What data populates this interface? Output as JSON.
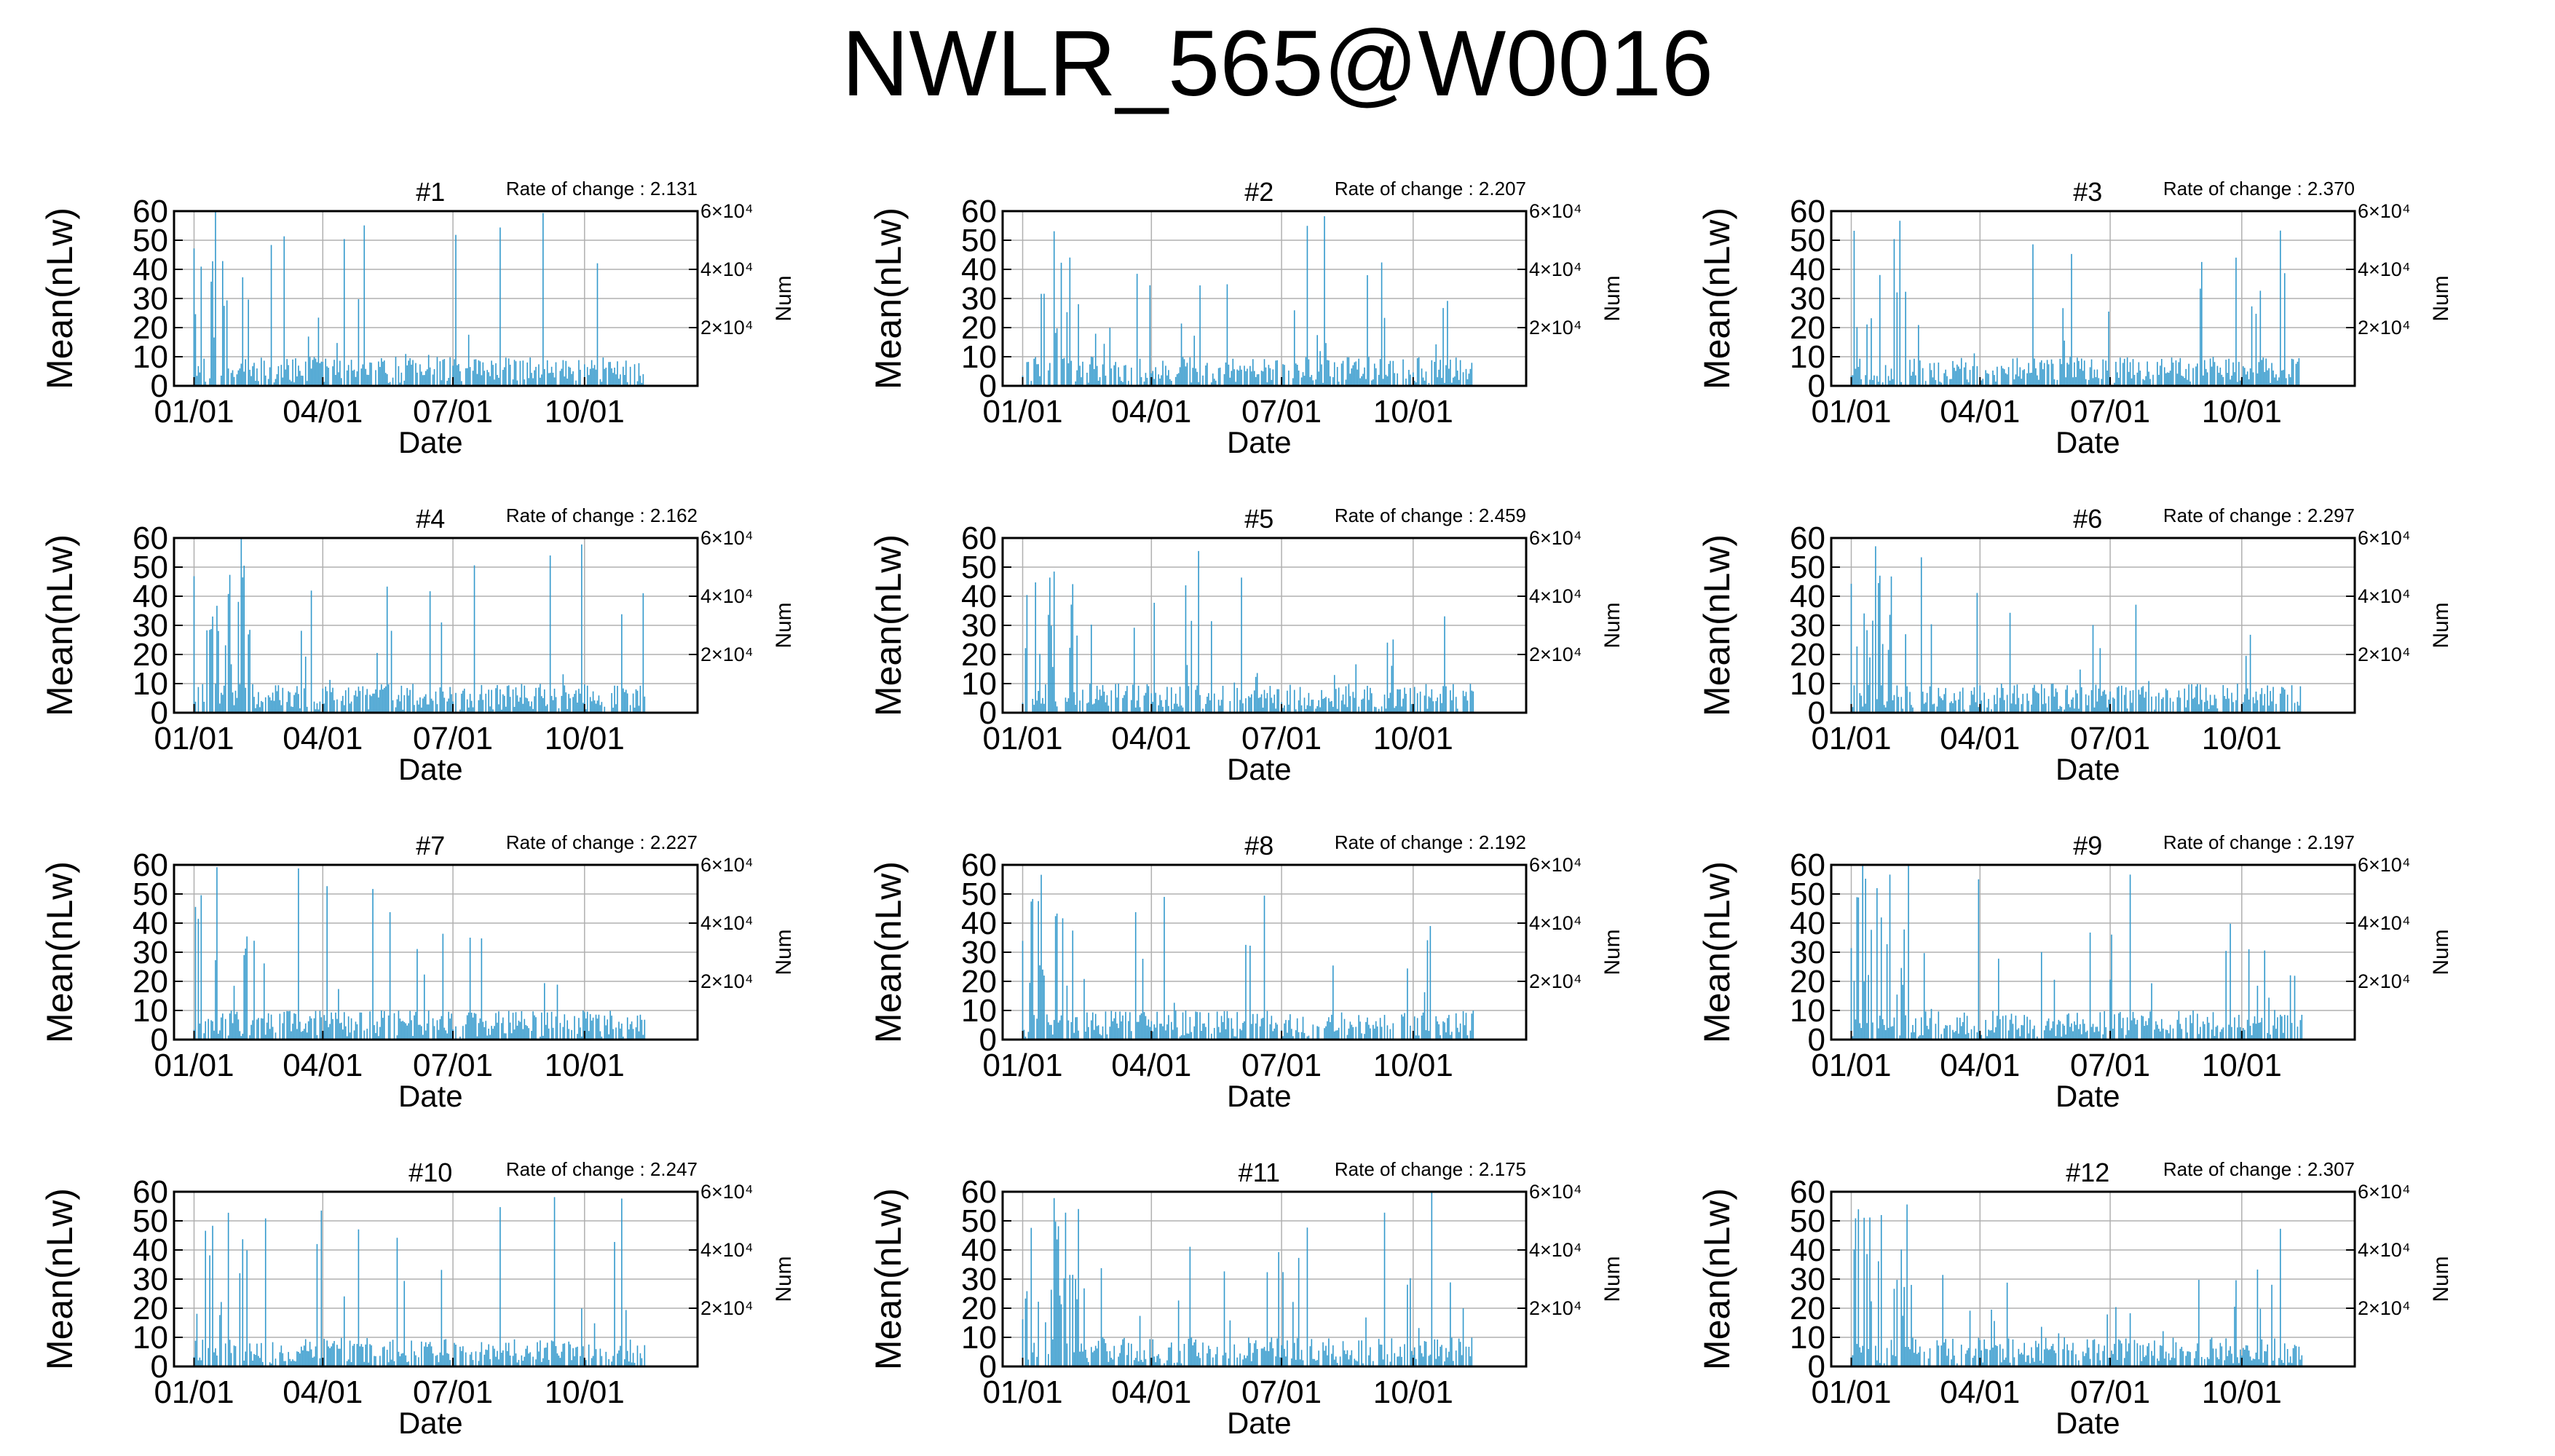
{
  "figure": {
    "title": "NWLR_565@W0016",
    "ylabel": "Mean(nLw)",
    "xlabel": "Date",
    "y2label": "Num",
    "rate_label": "Rate of change : ",
    "colors": {
      "bars": "#3399cc",
      "axes": "#000000",
      "grid": "#b0b0b0"
    }
  },
  "chart_data": [
    {
      "title": "#1",
      "rate": "2.131",
      "type": "bar",
      "x_ticks": [
        "01/01",
        "04/01",
        "07/01",
        "10/01"
      ],
      "y_ticks": [
        "0",
        "10",
        "20",
        "30",
        "40",
        "50",
        "60"
      ],
      "y2_ticks": [
        "2×10⁴",
        "4×10⁴",
        "6×10⁴"
      ],
      "ylim": [
        0,
        60
      ],
      "y2lim": [
        0,
        60000
      ],
      "x_range_days": [
        -14,
        352
      ],
      "seed": 11
    },
    {
      "title": "#2",
      "rate": "2.207",
      "type": "bar",
      "x_ticks": [
        "01/01",
        "04/01",
        "07/01",
        "10/01"
      ],
      "y_ticks": [
        "0",
        "10",
        "20",
        "30",
        "40",
        "50",
        "60"
      ],
      "y2_ticks": [
        "2×10⁴",
        "4×10⁴",
        "6×10⁴"
      ],
      "ylim": [
        0,
        60
      ],
      "y2lim": [
        0,
        60000
      ],
      "x_range_days": [
        -14,
        352
      ],
      "seed": 22
    },
    {
      "title": "#3",
      "rate": "2.370",
      "type": "bar",
      "x_ticks": [
        "01/01",
        "04/01",
        "07/01",
        "10/01"
      ],
      "y_ticks": [
        "0",
        "10",
        "20",
        "30",
        "40",
        "50",
        "60"
      ],
      "y2_ticks": [
        "2×10⁴",
        "4×10⁴",
        "6×10⁴"
      ],
      "ylim": [
        0,
        60
      ],
      "y2lim": [
        0,
        60000
      ],
      "x_range_days": [
        -14,
        352
      ],
      "seed": 33
    },
    {
      "title": "#4",
      "rate": "2.162",
      "type": "bar",
      "x_ticks": [
        "01/01",
        "04/01",
        "07/01",
        "10/01"
      ],
      "y_ticks": [
        "0",
        "10",
        "20",
        "30",
        "40",
        "50",
        "60"
      ],
      "y2_ticks": [
        "2×10⁴",
        "4×10⁴",
        "6×10⁴"
      ],
      "ylim": [
        0,
        60
      ],
      "y2lim": [
        0,
        60000
      ],
      "x_range_days": [
        -14,
        352
      ],
      "seed": 44
    },
    {
      "title": "#5",
      "rate": "2.459",
      "type": "bar",
      "x_ticks": [
        "01/01",
        "04/01",
        "07/01",
        "10/01"
      ],
      "y_ticks": [
        "0",
        "10",
        "20",
        "30",
        "40",
        "50",
        "60"
      ],
      "y2_ticks": [
        "2×10⁴",
        "4×10⁴",
        "6×10⁴"
      ],
      "ylim": [
        0,
        60
      ],
      "y2lim": [
        0,
        60000
      ],
      "x_range_days": [
        -14,
        352
      ],
      "seed": 55
    },
    {
      "title": "#6",
      "rate": "2.297",
      "type": "bar",
      "x_ticks": [
        "01/01",
        "04/01",
        "07/01",
        "10/01"
      ],
      "y_ticks": [
        "0",
        "10",
        "20",
        "30",
        "40",
        "50",
        "60"
      ],
      "y2_ticks": [
        "2×10⁴",
        "4×10⁴",
        "6×10⁴"
      ],
      "ylim": [
        0,
        60
      ],
      "y2lim": [
        0,
        60000
      ],
      "x_range_days": [
        -14,
        352
      ],
      "seed": 66
    },
    {
      "title": "#7",
      "rate": "2.227",
      "type": "bar",
      "x_ticks": [
        "01/01",
        "04/01",
        "07/01",
        "10/01"
      ],
      "y_ticks": [
        "0",
        "10",
        "20",
        "30",
        "40",
        "50",
        "60"
      ],
      "y2_ticks": [
        "2×10⁴",
        "4×10⁴",
        "6×10⁴"
      ],
      "ylim": [
        0,
        60
      ],
      "y2lim": [
        0,
        60000
      ],
      "x_range_days": [
        -14,
        352
      ],
      "seed": 77
    },
    {
      "title": "#8",
      "rate": "2.192",
      "type": "bar",
      "x_ticks": [
        "01/01",
        "04/01",
        "07/01",
        "10/01"
      ],
      "y_ticks": [
        "0",
        "10",
        "20",
        "30",
        "40",
        "50",
        "60"
      ],
      "y2_ticks": [
        "2×10⁴",
        "4×10⁴",
        "6×10⁴"
      ],
      "ylim": [
        0,
        60
      ],
      "y2lim": [
        0,
        60000
      ],
      "x_range_days": [
        -14,
        352
      ],
      "seed": 88
    },
    {
      "title": "#9",
      "rate": "2.197",
      "type": "bar",
      "x_ticks": [
        "01/01",
        "04/01",
        "07/01",
        "10/01"
      ],
      "y_ticks": [
        "0",
        "10",
        "20",
        "30",
        "40",
        "50",
        "60"
      ],
      "y2_ticks": [
        "2×10⁴",
        "4×10⁴",
        "6×10⁴"
      ],
      "ylim": [
        0,
        60
      ],
      "y2lim": [
        0,
        60000
      ],
      "x_range_days": [
        -14,
        352
      ],
      "seed": 99
    },
    {
      "title": "#10",
      "rate": "2.247",
      "type": "bar",
      "x_ticks": [
        "01/01",
        "04/01",
        "07/01",
        "10/01"
      ],
      "y_ticks": [
        "0",
        "10",
        "20",
        "30",
        "40",
        "50",
        "60"
      ],
      "y2_ticks": [
        "2×10⁴",
        "4×10⁴",
        "6×10⁴"
      ],
      "ylim": [
        0,
        60
      ],
      "y2lim": [
        0,
        60000
      ],
      "x_range_days": [
        -14,
        352
      ],
      "seed": 110
    },
    {
      "title": "#11",
      "rate": "2.175",
      "type": "bar",
      "x_ticks": [
        "01/01",
        "04/01",
        "07/01",
        "10/01"
      ],
      "y_ticks": [
        "0",
        "10",
        "20",
        "30",
        "40",
        "50",
        "60"
      ],
      "y2_ticks": [
        "2×10⁴",
        "4×10⁴",
        "6×10⁴"
      ],
      "ylim": [
        0,
        60
      ],
      "y2lim": [
        0,
        60000
      ],
      "x_range_days": [
        -14,
        352
      ],
      "seed": 121
    },
    {
      "title": "#12",
      "rate": "2.307",
      "type": "bar",
      "x_ticks": [
        "01/01",
        "04/01",
        "07/01",
        "10/01"
      ],
      "y_ticks": [
        "0",
        "10",
        "20",
        "30",
        "40",
        "50",
        "60"
      ],
      "y2_ticks": [
        "2×10⁴",
        "4×10⁴",
        "6×10⁴"
      ],
      "ylim": [
        0,
        60
      ],
      "y2lim": [
        0,
        60000
      ],
      "x_range_days": [
        -14,
        352
      ],
      "seed": 132
    }
  ]
}
